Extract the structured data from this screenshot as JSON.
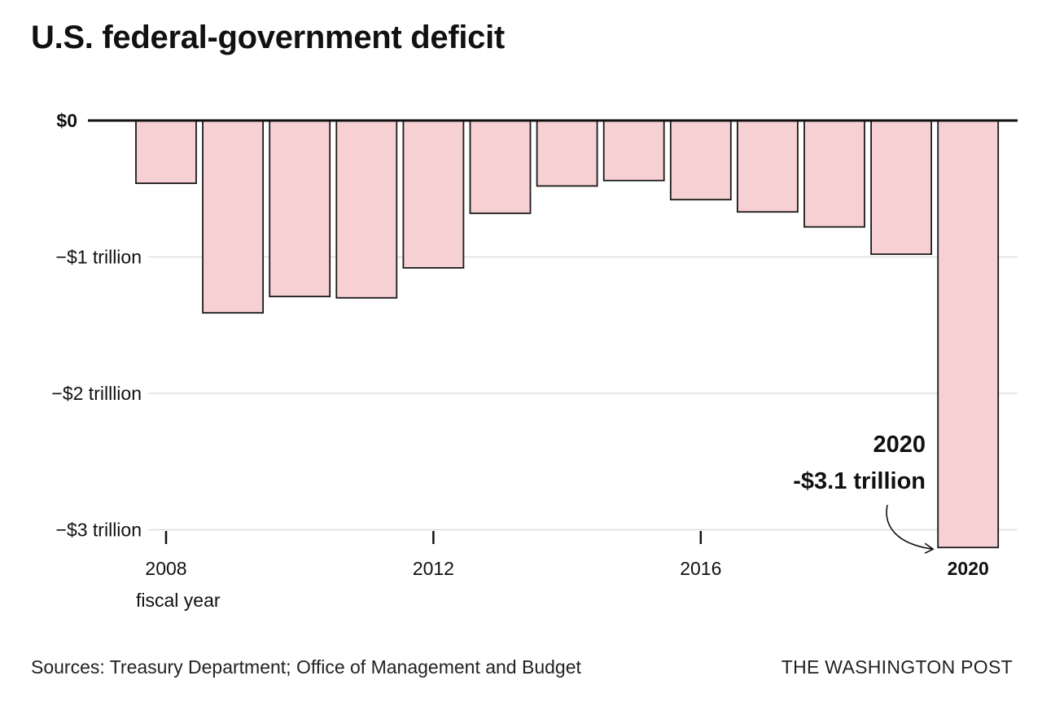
{
  "title": "U.S. federal-government deficit",
  "footer": {
    "source": "Sources: Treasury Department; Office of Management and Budget",
    "publisher": "THE WASHINGTON POST"
  },
  "colors": {
    "bar_fill": "#f7d0d3",
    "bar_stroke": "#1a1a1a",
    "gridline": "#dddddd",
    "zero_line": "#111111",
    "text": "#111111"
  },
  "chart_data": {
    "type": "bar",
    "title": "U.S. federal-government deficit",
    "xlabel": "fiscal year",
    "ylabel": "",
    "categories": [
      "2008",
      "2009",
      "2010",
      "2011",
      "2012",
      "2013",
      "2014",
      "2015",
      "2016",
      "2017",
      "2018",
      "2019",
      "2020"
    ],
    "values": [
      -0.46,
      -1.41,
      -1.29,
      -1.3,
      -1.08,
      -0.68,
      -0.48,
      -0.44,
      -0.58,
      -0.67,
      -0.78,
      -0.98,
      -3.13
    ],
    "unit": "trillion dollars",
    "ylim": [
      -3.15,
      0
    ],
    "y_ticks": [
      {
        "value": 0,
        "label": "$0"
      },
      {
        "value": -1,
        "label": "−$1 trillion"
      },
      {
        "value": -2,
        "label": "−$2 trilllion"
      },
      {
        "value": -3,
        "label": "−$3 trillion"
      }
    ],
    "x_ticks": [
      {
        "year": "2008",
        "label": "2008",
        "bold": false
      },
      {
        "year": "2012",
        "label": "2012",
        "bold": false
      },
      {
        "year": "2016",
        "label": "2016",
        "bold": false
      },
      {
        "year": "2020",
        "label": "2020",
        "bold": true
      }
    ],
    "annotation": {
      "target": "2020",
      "line1": "2020",
      "line2": "-$3.1 trillion"
    },
    "grid": true
  }
}
